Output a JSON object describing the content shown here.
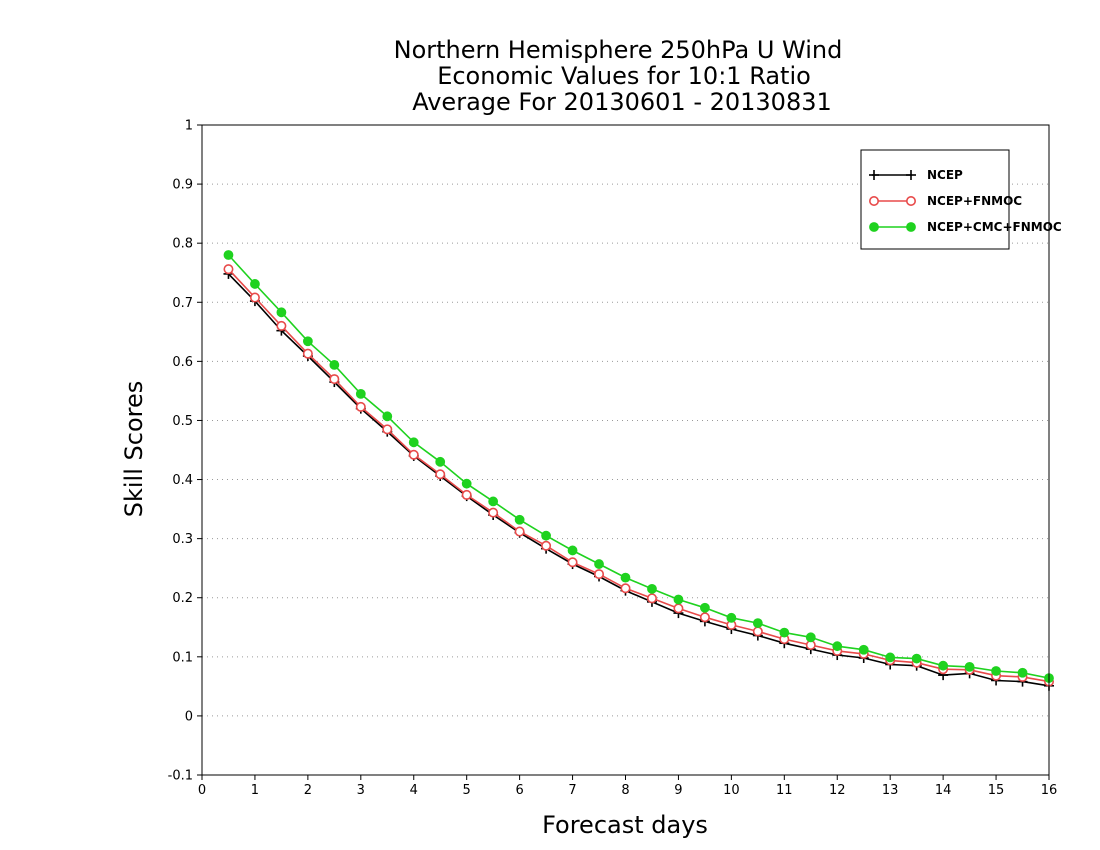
{
  "chart_data": {
    "type": "line",
    "title": [
      "Northern Hemisphere 250hPa U Wind",
      "Economic Values for 10:1 Ratio",
      "Average For 20130601 - 20130831"
    ],
    "xlabel": "Forecast days",
    "ylabel": "Skill Scores",
    "xlim": [
      0,
      16
    ],
    "ylim": [
      -0.1,
      1
    ],
    "xticks": [
      0,
      1,
      2,
      3,
      4,
      5,
      6,
      7,
      8,
      9,
      10,
      11,
      12,
      13,
      14,
      15,
      16
    ],
    "yticks": [
      -0.1,
      0,
      0.1,
      0.2,
      0.3,
      0.4,
      0.5,
      0.6,
      0.7,
      0.8,
      0.9,
      1
    ],
    "grid": "horizontal-dotted",
    "legend_position": "top-right",
    "x": [
      0.5,
      1,
      1.5,
      2,
      2.5,
      3,
      3.5,
      4,
      4.5,
      5,
      5.5,
      6,
      6.5,
      7,
      7.5,
      8,
      8.5,
      9,
      9.5,
      10,
      10.5,
      11,
      11.5,
      12,
      12.5,
      13,
      13.5,
      14,
      14.5,
      15,
      15.5,
      16
    ],
    "series": [
      {
        "name": "NCEP",
        "color": "#000000",
        "marker": "plus",
        "values": [
          0.748,
          0.702,
          0.652,
          0.609,
          0.565,
          0.52,
          0.481,
          0.44,
          0.406,
          0.372,
          0.34,
          0.31,
          0.283,
          0.257,
          0.236,
          0.212,
          0.193,
          0.174,
          0.16,
          0.147,
          0.136,
          0.123,
          0.113,
          0.103,
          0.098,
          0.087,
          0.085,
          0.069,
          0.072,
          0.06,
          0.058,
          0.051
        ]
      },
      {
        "name": "NCEP+FNMOC",
        "color": "#e84a4a",
        "marker": "open-circle",
        "values": [
          0.756,
          0.708,
          0.66,
          0.613,
          0.57,
          0.523,
          0.485,
          0.442,
          0.409,
          0.374,
          0.344,
          0.312,
          0.288,
          0.26,
          0.24,
          0.216,
          0.199,
          0.182,
          0.167,
          0.154,
          0.143,
          0.13,
          0.12,
          0.11,
          0.105,
          0.094,
          0.09,
          0.079,
          0.078,
          0.068,
          0.066,
          0.058
        ]
      },
      {
        "name": "NCEP+CMC+FNMOC",
        "color": "#1fd21f",
        "marker": "filled-circle",
        "values": [
          0.78,
          0.731,
          0.683,
          0.634,
          0.594,
          0.545,
          0.507,
          0.463,
          0.43,
          0.393,
          0.363,
          0.332,
          0.305,
          0.28,
          0.257,
          0.234,
          0.215,
          0.197,
          0.183,
          0.166,
          0.157,
          0.141,
          0.133,
          0.118,
          0.112,
          0.099,
          0.097,
          0.085,
          0.083,
          0.076,
          0.073,
          0.064
        ]
      }
    ]
  }
}
